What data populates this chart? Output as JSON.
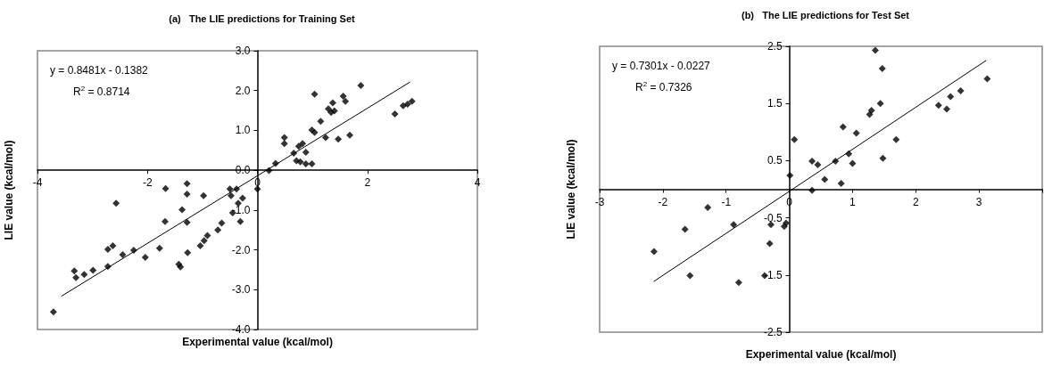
{
  "chart_data": [
    {
      "type": "scatter",
      "title": "(a)   The LIE predictions for Training Set",
      "xlabel": "Experimental value (kcal/mol)",
      "ylabel": "LIE value (kcal/mol)",
      "annotations": [
        "y = 0.8481x - 0.1382",
        "R$^{2}$ = 0.8714"
      ],
      "xlim": [
        -4,
        4
      ],
      "xticks": [
        -4,
        -2,
        0,
        2,
        4
      ],
      "ylim": [
        -4,
        3
      ],
      "yticks": [
        {
          "value": -4,
          "label": "-4.0"
        },
        {
          "value": -3,
          "label": "-3.0"
        },
        {
          "value": -2,
          "label": "-2.0"
        },
        {
          "value": -1,
          "label": "-1.0"
        },
        {
          "value": 0,
          "label": "0.0"
        },
        {
          "value": 1,
          "label": "1.0"
        },
        {
          "value": 2,
          "label": "2.0"
        },
        {
          "value": 3,
          "label": "3.0"
        }
      ],
      "grid": false,
      "marker": "diamond",
      "series": [
        {
          "type": "scatter",
          "color": "#000000",
          "x": [
            -3.71,
            -3.33,
            -3.3,
            -3.15,
            -2.99,
            -2.72,
            -2.72,
            -2.63,
            -2.57,
            -2.45,
            -2.25,
            -2.04,
            -1.78,
            -1.68,
            -1.67,
            -1.43,
            -1.4,
            -1.37,
            -1.28,
            -1.28,
            -1.28,
            -1.27,
            -1.04,
            -0.98,
            -0.97,
            -0.91,
            -0.72,
            -0.65,
            -0.5,
            -0.48,
            -0.45,
            -0.38,
            -0.35,
            -0.31,
            -0.27,
            0.0,
            0.21,
            0.33,
            0.49,
            0.49,
            0.66,
            0.71,
            0.78,
            0.75,
            0.82,
            0.88,
            0.88,
            0.99,
            0.99,
            1.04,
            1.04,
            1.15,
            1.24,
            1.29,
            1.34,
            1.37,
            1.4,
            1.47,
            1.56,
            1.6,
            1.68,
            1.88,
            2.5,
            2.65,
            2.73,
            2.81
          ],
          "values": [
            -3.56,
            -2.53,
            -2.7,
            -2.62,
            -2.51,
            -2.42,
            -1.99,
            -1.9,
            -0.83,
            -2.12,
            -2.01,
            -2.19,
            -1.96,
            -1.29,
            -0.46,
            -2.36,
            -2.43,
            -0.99,
            -0.34,
            -0.6,
            -1.31,
            -2.07,
            -1.9,
            -0.64,
            -1.77,
            -1.64,
            -1.5,
            -1.33,
            -0.47,
            -0.64,
            -1.07,
            -0.47,
            -0.83,
            -1.29,
            -0.7,
            -0.47,
            -0.01,
            0.17,
            0.82,
            0.67,
            0.43,
            0.24,
            0.21,
            0.6,
            0.67,
            0.45,
            0.16,
            0.16,
            1.01,
            0.95,
            1.91,
            1.23,
            0.82,
            1.54,
            1.45,
            1.69,
            1.49,
            0.78,
            1.86,
            1.73,
            0.88,
            2.13,
            1.41,
            1.62,
            1.66,
            1.73
          ]
        },
        {
          "type": "line",
          "color": "#000000",
          "marker": "none",
          "line_style": "solid",
          "x": [
            -3.56,
            2.77
          ],
          "values": [
            -3.16,
            2.21
          ]
        }
      ]
    },
    {
      "type": "scatter",
      "title": "(b)   The LIE predictions for Test Set",
      "xlabel": "Experimental value (kcal/mol)",
      "ylabel": "LIE value (kcal/mol)",
      "annotations": [
        "y = 0.7301x - 0.0227",
        "R$^{2}$ = 0.7326"
      ],
      "xlim": [
        -3,
        4
      ],
      "xticks": [
        -3,
        -2,
        -1,
        0,
        1,
        2,
        3,
        {
          "value": 4,
          "label": null
        }
      ],
      "ylim": [
        -2.5,
        2.5
      ],
      "yticks": [
        -2.5,
        -1.5,
        -0.5,
        0.5,
        1.5,
        2.5
      ],
      "grid": false,
      "marker": "diamond",
      "series": [
        {
          "type": "scatter",
          "color": "#000000",
          "x": [
            -2.14,
            -1.65,
            -1.57,
            -1.29,
            -0.88,
            -0.8,
            -0.39,
            -0.31,
            -0.29,
            -0.08,
            -0.05,
            0.01,
            0.08,
            0.36,
            0.36,
            0.45,
            0.56,
            0.73,
            0.82,
            0.85,
            0.94,
            1.0,
            1.06,
            1.27,
            1.3,
            1.36,
            1.44,
            1.47,
            1.48,
            1.69,
            2.36,
            2.49,
            2.55,
            2.71,
            3.13
          ],
          "values": [
            -1.09,
            -0.7,
            -1.51,
            -0.32,
            -0.62,
            -1.63,
            -1.51,
            -0.95,
            -0.62,
            -0.65,
            -0.59,
            0.24,
            0.87,
            -0.02,
            0.49,
            0.43,
            0.17,
            0.49,
            0.1,
            1.09,
            0.62,
            0.45,
            0.98,
            1.31,
            1.38,
            2.43,
            1.5,
            2.11,
            0.54,
            0.87,
            1.47,
            1.4,
            1.62,
            1.72,
            1.93
          ]
        },
        {
          "type": "line",
          "color": "#000000",
          "marker": "none",
          "line_style": "solid",
          "x": [
            -2.14,
            3.11
          ],
          "values": [
            -1.61,
            2.25
          ]
        }
      ]
    }
  ]
}
